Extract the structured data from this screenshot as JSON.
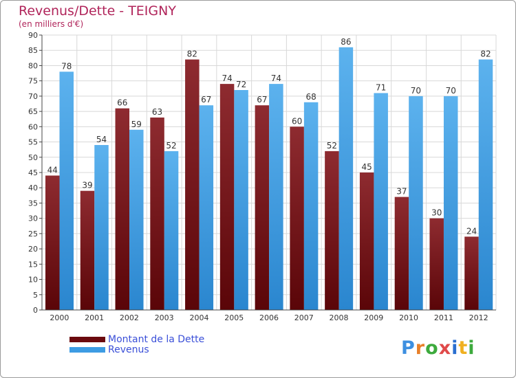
{
  "title": "Revenus/Dette - TEIGNY",
  "subtitle": "(en milliers d'€)",
  "colors": {
    "dette": "#6b0a0e",
    "revenus": "#3d9ce3",
    "title": "#b0245a",
    "legend_text": "#3a4fd8",
    "grid": "#d8d8d8"
  },
  "logo": {
    "text": "Proxiti"
  },
  "chart_data": {
    "type": "bar",
    "categories": [
      "2000",
      "2001",
      "2002",
      "2003",
      "2004",
      "2005",
      "2006",
      "2007",
      "2008",
      "2009",
      "2010",
      "2011",
      "2012"
    ],
    "series": [
      {
        "name": "Montant de la Dette",
        "values": [
          44,
          39,
          66,
          63,
          82,
          74,
          67,
          60,
          52,
          45,
          37,
          30,
          24
        ]
      },
      {
        "name": "Revenus",
        "values": [
          78,
          54,
          59,
          52,
          67,
          72,
          74,
          68,
          86,
          71,
          70,
          70,
          82
        ]
      }
    ],
    "ylim": [
      0,
      90
    ],
    "ytick_step": 5,
    "grid": true,
    "legend_position": "bottom-left"
  }
}
